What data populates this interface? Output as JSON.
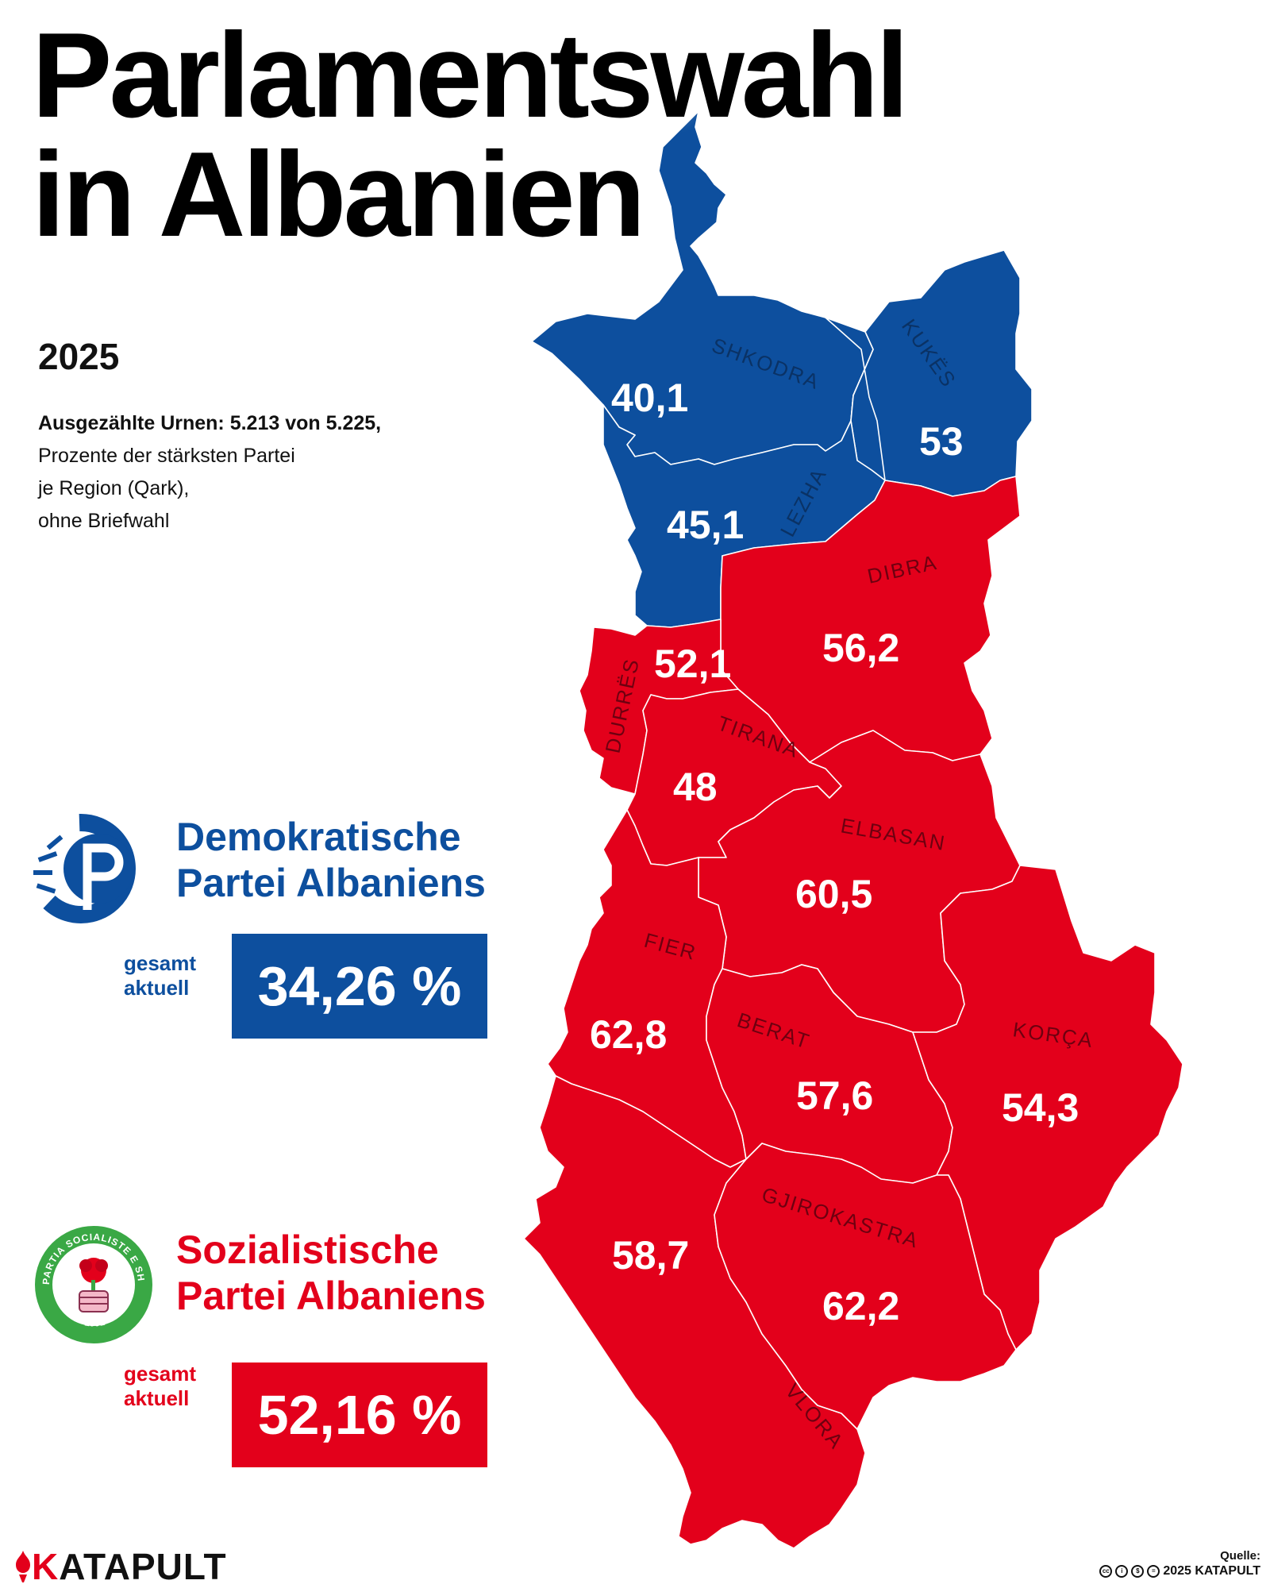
{
  "title": {
    "line1": "Parlamentswahl",
    "line2": "in Albanien"
  },
  "year": "2025",
  "subtitle": {
    "line1": "Ausgezählte Urnen: 5.213 von 5.225,",
    "line2": "Prozente der stärksten Partei",
    "line3": "je Region (Qark),",
    "line4": "ohne Briefwahl"
  },
  "parties": {
    "dp": {
      "name_line1": "Demokratische",
      "name_line2": "Partei Albaniens",
      "total_label_line1": "gesamt",
      "total_label_line2": "aktuell",
      "total": "34,26 %",
      "color": "#0d4f9e",
      "icon": "dp-logo-icon"
    },
    "ps": {
      "name_line1": "Sozialistische",
      "name_line2": "Partei Albaniens",
      "total_label_line1": "gesamt",
      "total_label_line2": "aktuell",
      "total": "52,16 %",
      "color": "#e3001b",
      "icon": "ps-logo-icon",
      "logo_text": "PARTIA SOCIALISTE E SHQIPËRISË",
      "logo_year": "1991"
    }
  },
  "regions": {
    "shkodra": {
      "name": "SHKODRA",
      "value": "40,1",
      "winner": "dp"
    },
    "kukes": {
      "name": "KUKËS",
      "value": "53",
      "winner": "dp"
    },
    "lezha": {
      "name": "LEZHA",
      "value": "45,1",
      "winner": "dp"
    },
    "dibra": {
      "name": "DIBRA",
      "value": "56,2",
      "winner": "ps"
    },
    "durres": {
      "name": "DURRËS",
      "value": "52,1",
      "winner": "ps"
    },
    "tirana": {
      "name": "TIRANA",
      "value": "48",
      "winner": "ps"
    },
    "elbasan": {
      "name": "ELBASAN",
      "value": "60,5",
      "winner": "ps"
    },
    "fier": {
      "name": "FIER",
      "value": "62,8",
      "winner": "ps"
    },
    "berat": {
      "name": "BERAT",
      "value": "57,6",
      "winner": "ps"
    },
    "korca": {
      "name": "KORÇA",
      "value": "54,3",
      "winner": "ps"
    },
    "vlora": {
      "name": "VLORA",
      "value": "58,7",
      "winner": "ps"
    },
    "gjirokastra": {
      "name": "GJIROKASTRA",
      "value": "62,2",
      "winner": "ps"
    }
  },
  "footer": {
    "brand_k": "K",
    "brand_rest": "ATAPULT",
    "source_label": "Quelle:",
    "source": "2025 KATAPULT"
  }
}
